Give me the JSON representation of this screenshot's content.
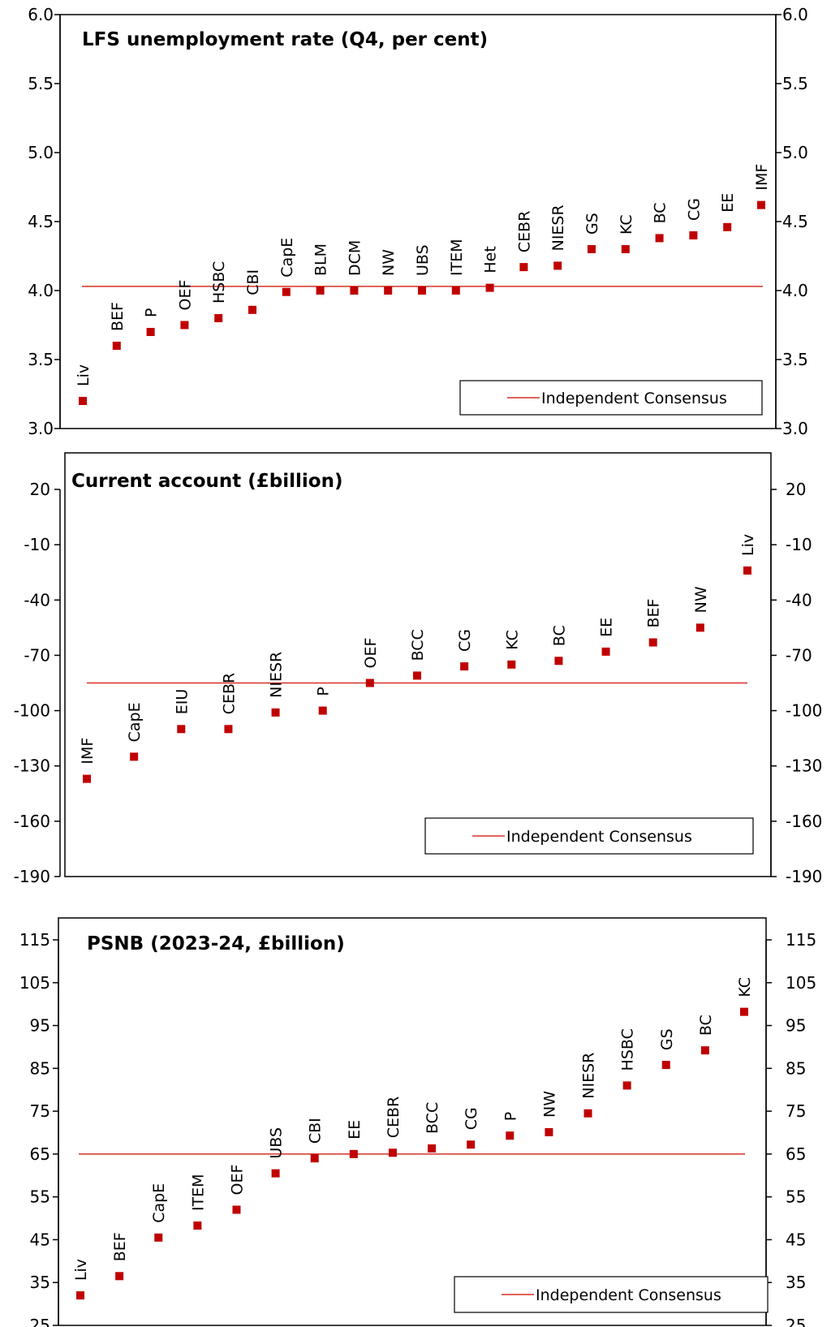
{
  "chart_data": [
    {
      "type": "scatter",
      "title": "LFS unemployment rate (Q4, per cent)",
      "ylim": [
        3.0,
        6.0
      ],
      "yticks": [
        "3.0",
        "3.5",
        "4.0",
        "4.5",
        "5.0",
        "5.5",
        "6.0"
      ],
      "ytick_values": [
        3.0,
        3.5,
        4.0,
        4.5,
        5.0,
        5.5,
        6.0
      ],
      "points": [
        {
          "label": "Liv",
          "value": 3.2
        },
        {
          "label": "BEF",
          "value": 3.6
        },
        {
          "label": "P",
          "value": 3.7
        },
        {
          "label": "OEF",
          "value": 3.75
        },
        {
          "label": "HSBC",
          "value": 3.8
        },
        {
          "label": "CBI",
          "value": 3.86
        },
        {
          "label": "CapE",
          "value": 3.99
        },
        {
          "label": "BLM",
          "value": 4.0
        },
        {
          "label": "DCM",
          "value": 4.0
        },
        {
          "label": "NW",
          "value": 4.0
        },
        {
          "label": "UBS",
          "value": 4.0
        },
        {
          "label": "ITEM",
          "value": 4.0
        },
        {
          "label": "Het",
          "value": 4.02
        },
        {
          "label": "CEBR",
          "value": 4.17
        },
        {
          "label": "NIESR",
          "value": 4.18
        },
        {
          "label": "GS",
          "value": 4.3
        },
        {
          "label": "KC",
          "value": 4.3
        },
        {
          "label": "BC",
          "value": 4.38
        },
        {
          "label": "CG",
          "value": 4.4
        },
        {
          "label": "EE",
          "value": 4.46
        },
        {
          "label": "IMF",
          "value": 4.62
        }
      ],
      "consensus": 4.03,
      "legend": "Independent Consensus",
      "legend_position": "bottom-right",
      "grid": false
    },
    {
      "type": "scatter",
      "title": "Current account (£billion)",
      "ylim": [
        -190,
        20
      ],
      "yticks": [
        "-190",
        "-160",
        "-130",
        "-100",
        "-70",
        "-40",
        "-10",
        "20"
      ],
      "ytick_values": [
        -190,
        -160,
        -130,
        -100,
        -70,
        -40,
        -10,
        20
      ],
      "points": [
        {
          "label": "IMF",
          "value": -137
        },
        {
          "label": "CapE",
          "value": -125
        },
        {
          "label": "EIU",
          "value": -110
        },
        {
          "label": "CEBR",
          "value": -110
        },
        {
          "label": "NIESR",
          "value": -101
        },
        {
          "label": "P",
          "value": -100
        },
        {
          "label": "OEF",
          "value": -85
        },
        {
          "label": "BCC",
          "value": -81
        },
        {
          "label": "CG",
          "value": -76
        },
        {
          "label": "KC",
          "value": -75
        },
        {
          "label": "BC",
          "value": -73
        },
        {
          "label": "EE",
          "value": -68
        },
        {
          "label": "BEF",
          "value": -63
        },
        {
          "label": "NW",
          "value": -55
        },
        {
          "label": "Liv",
          "value": -24
        }
      ],
      "consensus": -85,
      "legend": "Independent Consensus",
      "legend_position": "bottom-right",
      "grid": false
    },
    {
      "type": "scatter",
      "title": "PSNB (2023-24, £billion)",
      "ylim": [
        25,
        115
      ],
      "yticks": [
        "25",
        "35",
        "45",
        "55",
        "65",
        "75",
        "85",
        "95",
        "105",
        "115"
      ],
      "ytick_values": [
        25,
        35,
        45,
        55,
        65,
        75,
        85,
        95,
        105,
        115
      ],
      "points": [
        {
          "label": "Liv",
          "value": 32
        },
        {
          "label": "BEF",
          "value": 36.5
        },
        {
          "label": "CapE",
          "value": 45.5
        },
        {
          "label": "ITEM",
          "value": 48.3
        },
        {
          "label": "OEF",
          "value": 52
        },
        {
          "label": "UBS",
          "value": 60.5
        },
        {
          "label": "CBI",
          "value": 64
        },
        {
          "label": "EE",
          "value": 65
        },
        {
          "label": "CEBR",
          "value": 65.3
        },
        {
          "label": "BCC",
          "value": 66.3
        },
        {
          "label": "CG",
          "value": 67.2
        },
        {
          "label": "P",
          "value": 69.3
        },
        {
          "label": "NW",
          "value": 70.1
        },
        {
          "label": "NIESR",
          "value": 74.5
        },
        {
          "label": "HSBC",
          "value": 81
        },
        {
          "label": "GS",
          "value": 85.8
        },
        {
          "label": "BC",
          "value": 89.2
        },
        {
          "label": "KC",
          "value": 98.2
        }
      ],
      "consensus": 65,
      "legend": "Independent Consensus",
      "legend_position": "bottom-right",
      "grid": false
    }
  ],
  "colors": {
    "marker": "#c00000",
    "consensus_line": "#d73027",
    "axis": "#000000"
  }
}
